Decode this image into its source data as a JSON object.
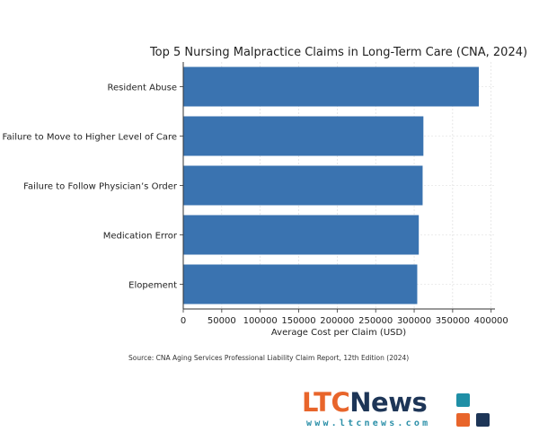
{
  "chart_data": {
    "type": "bar",
    "orientation": "horizontal",
    "title": "Top 5 Nursing Malpractice Claims in Long-Term Care (CNA, 2024)",
    "xlabel": "Average Cost per Claim (USD)",
    "ylabel": "",
    "categories": [
      "Resident Abuse",
      "Failure to Move to Higher Level of Care",
      "Failure to Follow Physician’s Order",
      "Medication Error",
      "Elopement"
    ],
    "values": [
      384000,
      312000,
      311000,
      306000,
      304000
    ],
    "xlim": [
      0,
      405000
    ],
    "xticks": [
      0,
      50000,
      100000,
      150000,
      200000,
      250000,
      300000,
      350000,
      400000
    ],
    "grid": true,
    "bar_color": "#3a73b0"
  },
  "source_text": "Source: CNA Aging Services Professional Liability Claim Report, 12th Edition (2024)",
  "logo": {
    "brand_ltc": "LTC",
    "brand_news": "News",
    "url": "www.ltcnews.com",
    "colors": {
      "orange": "#e8652b",
      "navy": "#1d3557",
      "teal": "#1f8fa6"
    }
  }
}
